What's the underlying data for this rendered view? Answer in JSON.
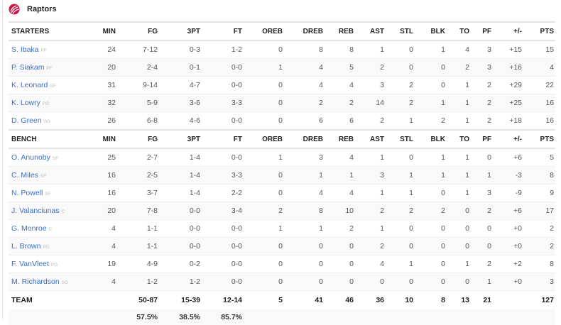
{
  "team": {
    "name": "Raptors",
    "logo_icon": "raptors-claw-logo",
    "brand_color": "#ce1141"
  },
  "columns": [
    "MIN",
    "FG",
    "3PT",
    "FT",
    "OREB",
    "DREB",
    "REB",
    "AST",
    "STL",
    "BLK",
    "TO",
    "PF",
    "+/-",
    "PTS"
  ],
  "starters": {
    "label": "STARTERS",
    "players": [
      {
        "name": "S. Ibaka",
        "pos": "PF",
        "stats": [
          "24",
          "7-12",
          "0-3",
          "1-2",
          "0",
          "8",
          "8",
          "1",
          "0",
          "1",
          "4",
          "3",
          "+15",
          "15"
        ]
      },
      {
        "name": "P. Siakam",
        "pos": "PF",
        "stats": [
          "20",
          "2-4",
          "0-1",
          "0-0",
          "1",
          "4",
          "5",
          "2",
          "0",
          "0",
          "2",
          "3",
          "+16",
          "4"
        ]
      },
      {
        "name": "K. Leonard",
        "pos": "SF",
        "stats": [
          "31",
          "9-14",
          "4-7",
          "0-0",
          "0",
          "4",
          "4",
          "3",
          "2",
          "0",
          "1",
          "2",
          "+29",
          "22"
        ]
      },
      {
        "name": "K. Lowry",
        "pos": "PG",
        "stats": [
          "32",
          "5-9",
          "3-6",
          "3-3",
          "0",
          "2",
          "2",
          "14",
          "2",
          "1",
          "1",
          "2",
          "+25",
          "16"
        ]
      },
      {
        "name": "D. Green",
        "pos": "SG",
        "stats": [
          "26",
          "6-8",
          "4-6",
          "0-0",
          "0",
          "6",
          "6",
          "2",
          "1",
          "2",
          "1",
          "2",
          "+18",
          "16"
        ]
      }
    ]
  },
  "bench": {
    "label": "BENCH",
    "players": [
      {
        "name": "O. Anunoby",
        "pos": "SF",
        "stats": [
          "25",
          "2-7",
          "1-4",
          "0-0",
          "1",
          "3",
          "4",
          "1",
          "0",
          "1",
          "1",
          "0",
          "+6",
          "5"
        ]
      },
      {
        "name": "C. Miles",
        "pos": "SF",
        "stats": [
          "16",
          "2-5",
          "1-4",
          "3-3",
          "0",
          "1",
          "1",
          "3",
          "1",
          "1",
          "1",
          "1",
          "-3",
          "8"
        ]
      },
      {
        "name": "N. Powell",
        "pos": "SF",
        "stats": [
          "16",
          "3-7",
          "1-4",
          "2-2",
          "0",
          "4",
          "4",
          "1",
          "1",
          "0",
          "1",
          "3",
          "-9",
          "9"
        ]
      },
      {
        "name": "J. Valanciunas",
        "pos": "C",
        "stats": [
          "20",
          "7-8",
          "0-0",
          "3-4",
          "2",
          "8",
          "10",
          "2",
          "2",
          "2",
          "0",
          "2",
          "+6",
          "17"
        ]
      },
      {
        "name": "G. Monroe",
        "pos": "C",
        "stats": [
          "4",
          "1-1",
          "0-0",
          "0-0",
          "1",
          "1",
          "2",
          "1",
          "0",
          "0",
          "0",
          "0",
          "+0",
          "2"
        ]
      },
      {
        "name": "L. Brown",
        "pos": "PG",
        "stats": [
          "4",
          "1-1",
          "0-0",
          "0-0",
          "0",
          "0",
          "0",
          "2",
          "0",
          "0",
          "0",
          "0",
          "+0",
          "2"
        ]
      },
      {
        "name": "F. VanVleet",
        "pos": "PG",
        "stats": [
          "19",
          "4-9",
          "0-2",
          "0-0",
          "0",
          "0",
          "0",
          "4",
          "1",
          "0",
          "1",
          "2",
          "+2",
          "8"
        ]
      },
      {
        "name": "M. Richardson",
        "pos": "SG",
        "stats": [
          "4",
          "1-2",
          "1-2",
          "0-0",
          "0",
          "0",
          "0",
          "0",
          "0",
          "0",
          "0",
          "1",
          "+0",
          "3"
        ]
      }
    ]
  },
  "totals": {
    "label": "TEAM",
    "stats": [
      "",
      "50-87",
      "15-39",
      "12-14",
      "5",
      "41",
      "46",
      "36",
      "10",
      "8",
      "13",
      "21",
      "",
      "127"
    ],
    "percentages": [
      "",
      "57.5%",
      "38.5%",
      "85.7%",
      "",
      "",
      "",
      "",
      "",
      "",
      "",
      "",
      "",
      ""
    ]
  }
}
